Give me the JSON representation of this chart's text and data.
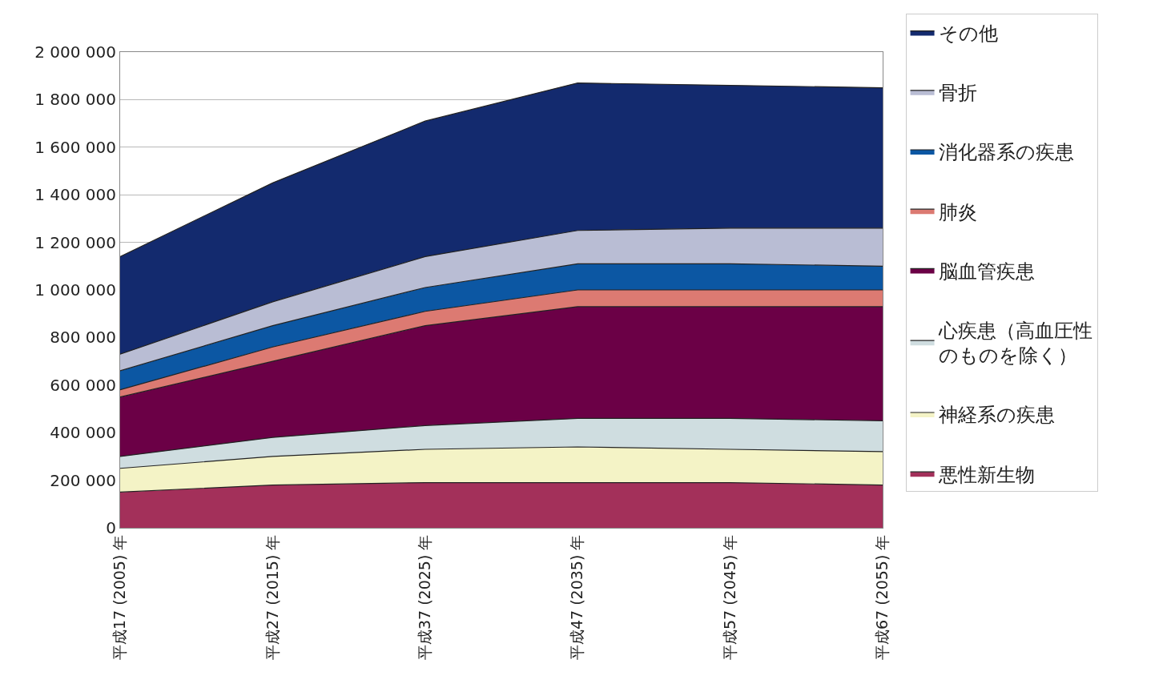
{
  "chart_data": {
    "type": "area",
    "stacked": true,
    "categories": [
      "平成17 (2005) 年",
      "平成27 (2015) 年",
      "平成37 (2025) 年",
      "平成47 (2035) 年",
      "平成57 (2045) 年",
      "平成67 (2055) 年"
    ],
    "series": [
      {
        "name": "悪性新生物",
        "color": "#a3305a",
        "values": [
          150000,
          180000,
          190000,
          190000,
          190000,
          180000
        ]
      },
      {
        "name": "神経系の疾患",
        "color": "#f4f3c6",
        "values": [
          100000,
          120000,
          140000,
          150000,
          140000,
          140000
        ]
      },
      {
        "name": "心疾患（高血圧性のものを除く）",
        "color": "#cfdde0",
        "values": [
          50000,
          80000,
          100000,
          120000,
          130000,
          130000
        ]
      },
      {
        "name": "脳血管疾患",
        "color": "#6b0046",
        "values": [
          250000,
          320000,
          420000,
          470000,
          470000,
          480000
        ]
      },
      {
        "name": "肺炎",
        "color": "#dc7a72",
        "values": [
          30000,
          60000,
          60000,
          70000,
          70000,
          70000
        ]
      },
      {
        "name": "消化器系の疾患",
        "color": "#0c57a3",
        "values": [
          80000,
          90000,
          100000,
          110000,
          110000,
          100000
        ]
      },
      {
        "name": "骨折",
        "color": "#b9bdd4",
        "values": [
          70000,
          100000,
          130000,
          140000,
          150000,
          160000
        ]
      },
      {
        "name": "その他",
        "color": "#132a6e",
        "values": [
          410000,
          500000,
          570000,
          620000,
          600000,
          590000
        ]
      }
    ],
    "ylim": [
      0,
      2000000
    ],
    "yticks": [
      0,
      {
        "value": 200000,
        "label": "200 000"
      },
      {
        "value": 400000,
        "label": "400 000"
      },
      {
        "value": 600000,
        "label": "600 000"
      },
      {
        "value": 800000,
        "label": "800 000"
      },
      {
        "value": 1000000,
        "label": "1 000 000"
      },
      {
        "value": 1200000,
        "label": "1 200 000"
      },
      {
        "value": 1400000,
        "label": "1 400 000"
      },
      {
        "value": 1600000,
        "label": "1 600 000"
      },
      {
        "value": 1800000,
        "label": "1 800 000"
      },
      {
        "value": 2000000,
        "label": "2 000 000"
      }
    ],
    "grid": "y",
    "legend": "right"
  }
}
